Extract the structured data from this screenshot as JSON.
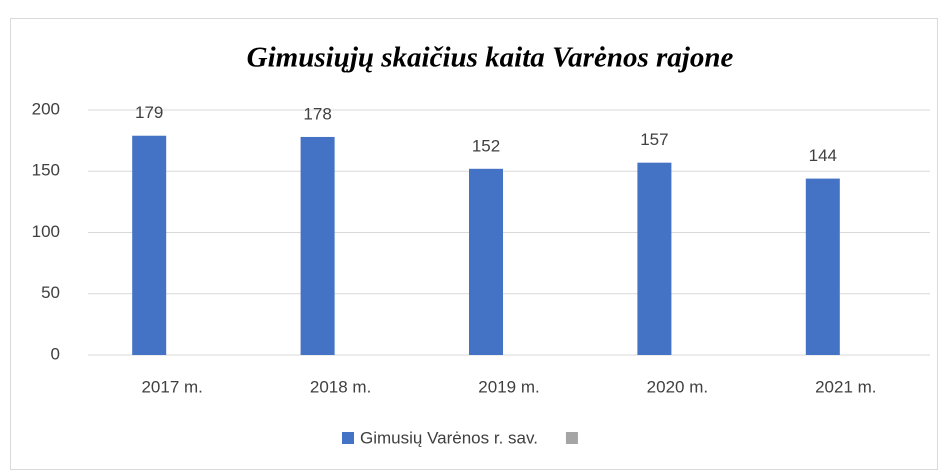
{
  "chart_data": {
    "type": "bar",
    "title": "Gimusiųjų skaičius kaita Varėnos rajone",
    "categories": [
      "2017 m.",
      "2018 m.",
      "2019 m.",
      "2020 m.",
      "2021 m."
    ],
    "series": [
      {
        "name": "Gimusių Varėnos r. sav.",
        "color": "#4472c4",
        "values": [
          179,
          178,
          152,
          157,
          144
        ]
      },
      {
        "name": null,
        "color": "#a5a5a5",
        "values": [
          null,
          null,
          null,
          null,
          null
        ]
      }
    ],
    "ylim": [
      0,
      200
    ],
    "yticks": [
      0,
      50,
      100,
      150,
      200
    ],
    "grid": true,
    "legend": "bottom"
  }
}
